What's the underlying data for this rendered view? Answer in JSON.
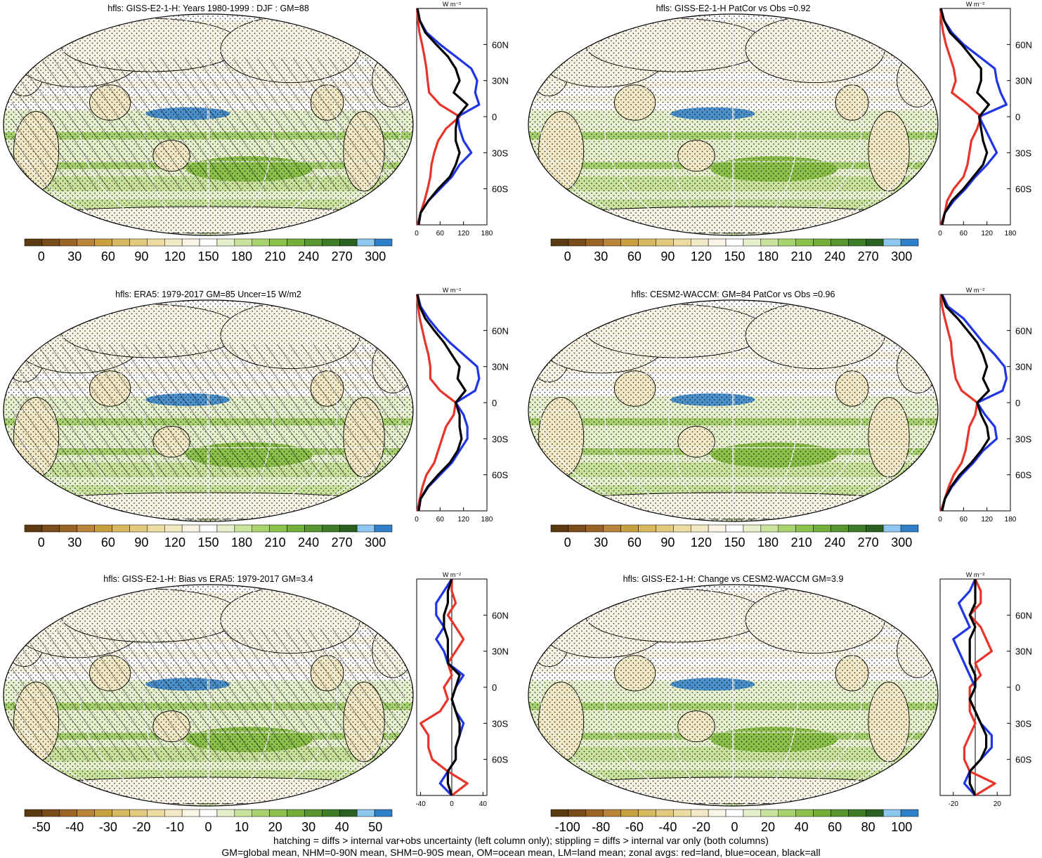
{
  "colors": {
    "abs_palette": [
      "#5c3a10",
      "#7a4c1a",
      "#9a6424",
      "#b8853a",
      "#c9a040",
      "#d8b860",
      "#e2c97e",
      "#ecdca2",
      "#f3e9c4",
      "#f9f4e3",
      "#ffffff",
      "#e6f0cc",
      "#c9e39c",
      "#a8d26f",
      "#8cc14b",
      "#73ad3a",
      "#58962f",
      "#3f7c26",
      "#2a6020",
      "#8ec8ef",
      "#2f7fc9"
    ],
    "diff_palette": [
      "#5c3a10",
      "#7a4c1a",
      "#9a6424",
      "#b8853a",
      "#c9a040",
      "#d8b860",
      "#e2c97e",
      "#ecdca2",
      "#f3e9c4",
      "#f9f4e3",
      "#ffffff",
      "#e6f0cc",
      "#c9e39c",
      "#a8d26f",
      "#8cc14b",
      "#73ad3a",
      "#58962f",
      "#3f7c26",
      "#2a6020",
      "#8ec8ef",
      "#2f7fc9"
    ],
    "land": "#e8342a",
    "ocean": "#1f35e6",
    "all": "#000000"
  },
  "footnote": {
    "line1": "hatching = diffs > internal var+obs uncertainty (left column only); stippling = diffs > internal var only (both columns)",
    "line2": "GM=global mean, NHM=0-90N mean, SHM=0-90S mean, OM=ocean mean, LM=land mean; zonal avgs: red=land, blue=ocean, black=all"
  },
  "chart_data": [
    {
      "type": "heatmap",
      "panel": "top-left",
      "title": "hfls: GISS-E2-1-H: Years 1980-1999 : DJF : GM=88",
      "colorbar": {
        "labels": [
          "0",
          "30",
          "60",
          "90",
          "120",
          "150",
          "180",
          "210",
          "240",
          "270",
          "300"
        ],
        "range": [
          -15,
          315
        ]
      },
      "hatching": true,
      "stippling": true,
      "zonal": {
        "unit_label": "W m⁻²",
        "xticks": [
          "0",
          "60",
          "120",
          "180"
        ],
        "xlim": [
          0,
          180
        ],
        "yticks": [
          "60N",
          "30N",
          "0",
          "30S",
          "60S"
        ],
        "ylim": [
          -90,
          90
        ],
        "lat": [
          -90,
          -80,
          -70,
          -60,
          -50,
          -40,
          -30,
          -20,
          -10,
          0,
          10,
          20,
          30,
          40,
          50,
          60,
          70,
          80,
          90
        ],
        "series": [
          {
            "name": "land",
            "values": [
              2,
              10,
              20,
              28,
              35,
              38,
              45,
              55,
              75,
              110,
              60,
              32,
              28,
              25,
              20,
              14,
              7,
              3,
              1
            ]
          },
          {
            "name": "ocean",
            "values": [
              5,
              10,
              30,
              60,
              90,
              110,
              140,
              120,
              110,
              105,
              160,
              150,
              155,
              140,
              100,
              60,
              25,
              8,
              2
            ]
          },
          {
            "name": "all",
            "values": [
              5,
              10,
              30,
              55,
              85,
              100,
              110,
              100,
              100,
              105,
              130,
              95,
              110,
              100,
              80,
              50,
              22,
              8,
              2
            ]
          }
        ]
      }
    },
    {
      "type": "heatmap",
      "panel": "top-right",
      "title": "hfls: GISS-E2-1-H PatCor vs Obs =0.92",
      "colorbar": {
        "labels": [
          "0",
          "30",
          "60",
          "90",
          "120",
          "150",
          "180",
          "210",
          "240",
          "270",
          "300"
        ],
        "range": [
          -15,
          315
        ]
      },
      "hatching": false,
      "stippling": true,
      "zonal": {
        "unit_label": "W m⁻²",
        "xticks": [
          "0",
          "60",
          "120",
          "180"
        ],
        "xlim": [
          0,
          180
        ],
        "yticks": [
          "60N",
          "30N",
          "0",
          "30S",
          "60S"
        ],
        "ylim": [
          -90,
          90
        ],
        "lat": [
          -90,
          -80,
          -70,
          -60,
          -50,
          -40,
          -30,
          -20,
          -10,
          0,
          10,
          20,
          30,
          40,
          50,
          60,
          70,
          80,
          90
        ],
        "series": [
          {
            "name": "land",
            "values": [
              2,
              12,
              18,
              35,
              60,
              70,
              75,
              80,
              95,
              105,
              70,
              30,
              40,
              35,
              25,
              15,
              8,
              3,
              1
            ]
          },
          {
            "name": "ocean",
            "values": [
              5,
              12,
              35,
              65,
              90,
              120,
              145,
              130,
              115,
              100,
              170,
              155,
              145,
              140,
              100,
              60,
              30,
              10,
              2
            ]
          },
          {
            "name": "all",
            "values": [
              5,
              12,
              30,
              60,
              85,
              110,
              120,
              110,
              105,
              100,
              125,
              95,
              105,
              105,
              80,
              55,
              25,
              10,
              2
            ]
          }
        ]
      }
    },
    {
      "type": "heatmap",
      "panel": "middle-left",
      "title": "hfls: ERA5: 1979-2017 GM=85 Uncer=15 W/m2",
      "colorbar": {
        "labels": [
          "0",
          "30",
          "60",
          "90",
          "120",
          "150",
          "180",
          "210",
          "240",
          "270",
          "300"
        ],
        "range": [
          -15,
          315
        ]
      },
      "hatching": true,
      "stippling": true,
      "zonal": {
        "unit_label": "W m⁻²",
        "xticks": [
          "0",
          "60",
          "120",
          "180"
        ],
        "xlim": [
          0,
          180
        ],
        "yticks": [
          "60N",
          "30N",
          "0",
          "30S",
          "60S"
        ],
        "ylim": [
          -90,
          90
        ],
        "lat": [
          -90,
          -80,
          -70,
          -60,
          -50,
          -40,
          -30,
          -20,
          -10,
          0,
          10,
          20,
          30,
          40,
          50,
          60,
          70,
          80,
          90
        ],
        "series": [
          {
            "name": "land",
            "values": [
              2,
              8,
              15,
              25,
              45,
              55,
              65,
              75,
              95,
              100,
              60,
              35,
              35,
              30,
              22,
              15,
              8,
              4,
              1
            ]
          },
          {
            "name": "ocean",
            "values": [
              5,
              10,
              30,
              60,
              90,
              110,
              130,
              130,
              120,
              100,
              150,
              160,
              155,
              120,
              85,
              55,
              30,
              10,
              2
            ]
          },
          {
            "name": "all",
            "values": [
              5,
              10,
              28,
              55,
              85,
              105,
              115,
              110,
              110,
              100,
              125,
              105,
              110,
              90,
              70,
              45,
              22,
              8,
              2
            ]
          }
        ]
      }
    },
    {
      "type": "heatmap",
      "panel": "middle-right",
      "title": "hfls: CESM2-WACCM: GM=84 PatCor vs Obs =0.96",
      "colorbar": {
        "labels": [
          "0",
          "30",
          "60",
          "90",
          "120",
          "150",
          "180",
          "210",
          "240",
          "270",
          "300"
        ],
        "range": [
          -15,
          315
        ]
      },
      "hatching": false,
      "stippling": true,
      "zonal": {
        "unit_label": "W m⁻²",
        "xticks": [
          "0",
          "60",
          "120",
          "180"
        ],
        "xlim": [
          0,
          180
        ],
        "yticks": [
          "60N",
          "30N",
          "0",
          "30S",
          "60S"
        ],
        "ylim": [
          -90,
          90
        ],
        "lat": [
          -90,
          -80,
          -70,
          -60,
          -50,
          -40,
          -30,
          -20,
          -10,
          0,
          10,
          20,
          30,
          40,
          50,
          60,
          70,
          80,
          90
        ],
        "series": [
          {
            "name": "land",
            "values": [
              2,
              12,
              22,
              35,
              55,
              65,
              70,
              75,
              90,
              95,
              55,
              40,
              35,
              30,
              28,
              20,
              12,
              5,
              2
            ]
          },
          {
            "name": "ocean",
            "values": [
              5,
              12,
              30,
              55,
              85,
              110,
              145,
              140,
              115,
              95,
              160,
              170,
              165,
              140,
              110,
              85,
              60,
              20,
              5
            ]
          },
          {
            "name": "all",
            "values": [
              5,
              12,
              28,
              50,
              80,
              105,
              125,
              120,
              105,
              95,
              125,
              110,
              120,
              110,
              95,
              70,
              45,
              15,
              4
            ]
          }
        ]
      }
    },
    {
      "type": "heatmap",
      "panel": "bottom-left",
      "title": "hfls: GISS-E2-1-H: Bias vs ERA5: 1979-2017 GM=3.4",
      "colorbar": {
        "labels": [
          "-50",
          "-40",
          "-30",
          "-20",
          "-10",
          "0",
          "10",
          "20",
          "30",
          "40",
          "50"
        ],
        "range": [
          -55,
          55
        ]
      },
      "hatching": true,
      "stippling": true,
      "zonal": {
        "unit_label": "W m⁻²",
        "xticks": [
          "-40",
          "0",
          "40"
        ],
        "xlim": [
          -45,
          45
        ],
        "yticks": [
          "60N",
          "30N",
          "0",
          "30S",
          "60S"
        ],
        "ylim": [
          -90,
          90
        ],
        "lat": [
          -90,
          -80,
          -70,
          -60,
          -50,
          -40,
          -30,
          -20,
          -10,
          0,
          10,
          20,
          30,
          40,
          50,
          60,
          70,
          80,
          90
        ],
        "series": [
          {
            "name": "land",
            "values": [
              0,
              20,
              -5,
              -25,
              -30,
              -30,
              -40,
              -15,
              -5,
              -10,
              0,
              -5,
              5,
              15,
              5,
              -5,
              5,
              0,
              0
            ]
          },
          {
            "name": "ocean",
            "values": [
              0,
              -15,
              -5,
              5,
              5,
              10,
              15,
              5,
              0,
              5,
              15,
              -5,
              -10,
              -20,
              -10,
              -20,
              -20,
              -10,
              0
            ]
          },
          {
            "name": "all",
            "values": [
              0,
              -5,
              -5,
              5,
              5,
              10,
              10,
              5,
              0,
              5,
              10,
              -5,
              -5,
              -5,
              -10,
              -10,
              -5,
              -5,
              0
            ]
          }
        ]
      }
    },
    {
      "type": "heatmap",
      "panel": "bottom-right",
      "title": "hfls: GISS-E2-1-H: Change vs CESM2-WACCM GM=3.9",
      "colorbar": {
        "labels": [
          "-100",
          "-80",
          "-60",
          "-40",
          "-20",
          "0",
          "20",
          "40",
          "60",
          "80",
          "100"
        ],
        "range": [
          -110,
          110
        ]
      },
      "hatching": false,
      "stippling": true,
      "zonal": {
        "unit_label": "W m⁻²",
        "xticks": [
          "-20",
          "20"
        ],
        "xlim": [
          -32,
          32
        ],
        "yticks": [
          "60N",
          "30N",
          "0",
          "30S",
          "60S"
        ],
        "ylim": [
          -90,
          90
        ],
        "lat": [
          -90,
          -80,
          -70,
          -60,
          -50,
          -40,
          -30,
          -20,
          -10,
          0,
          10,
          20,
          30,
          40,
          50,
          60,
          70,
          80,
          90
        ],
        "series": [
          {
            "name": "land",
            "values": [
              0,
              18,
              -5,
              -10,
              -10,
              -5,
              0,
              -5,
              -5,
              -5,
              5,
              0,
              15,
              10,
              5,
              -5,
              5,
              5,
              0
            ]
          },
          {
            "name": "ocean",
            "values": [
              0,
              -10,
              -5,
              5,
              15,
              15,
              5,
              0,
              -5,
              0,
              -5,
              -10,
              -15,
              -20,
              -5,
              -10,
              -15,
              -5,
              0
            ]
          },
          {
            "name": "all",
            "values": [
              0,
              -5,
              -5,
              5,
              10,
              10,
              5,
              0,
              -5,
              0,
              0,
              -5,
              -5,
              -5,
              0,
              -5,
              0,
              0,
              0
            ]
          }
        ]
      }
    }
  ]
}
